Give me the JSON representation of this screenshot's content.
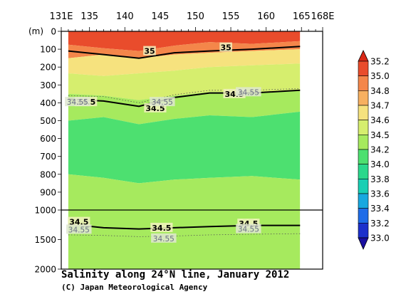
{
  "chart_data": {
    "type": "heatmap",
    "title": "Salinity along 24°N line, January 2012",
    "credit": "(C) Japan Meteorological Agency",
    "x_axis": {
      "range": [
        131,
        168
      ],
      "ticks": [
        {
          "value": 131,
          "label": "131E"
        },
        {
          "value": 135,
          "label": "135"
        },
        {
          "value": 140,
          "label": "140"
        },
        {
          "value": 145,
          "label": "145"
        },
        {
          "value": 150,
          "label": "150"
        },
        {
          "value": 155,
          "label": "155"
        },
        {
          "value": 160,
          "label": "160"
        },
        {
          "value": 165,
          "label": "165"
        },
        {
          "value": 168,
          "label": "168E"
        }
      ]
    },
    "y_axis": {
      "unit_label": "(m)",
      "ticks_upper": [
        0,
        100,
        200,
        300,
        400,
        500,
        600,
        700,
        800,
        900,
        1000
      ],
      "ticks_lower": [
        1500,
        2000
      ],
      "upper_range": [
        0,
        1000
      ],
      "lower_range": [
        1000,
        2000
      ]
    },
    "data_extent_lon": [
      132,
      164.8
    ],
    "colorbar": {
      "levels": [
        "33.0",
        "33.2",
        "33.4",
        "33.6",
        "33.8",
        "34.0",
        "34.2",
        "34.5",
        "34.6",
        "34.7",
        "34.8",
        "35.0",
        "35.2"
      ],
      "colors": [
        "#1a0fa0",
        "#1c30cc",
        "#1e6ce8",
        "#17a8e0",
        "#18cfb4",
        "#2ad88c",
        "#4de070",
        "#a6ea5e",
        "#d6ee6e",
        "#f6e27e",
        "#f7b060",
        "#f4864a",
        "#e94c2c",
        "#d92816"
      ]
    },
    "bands": [
      {
        "value": "35.0+",
        "color": "#e94c2c",
        "depth_top_m": 0,
        "depth_bottom_m": [
          75,
          95,
          110,
          80,
          60,
          70,
          55
        ]
      },
      {
        "value": "34.8-35.0",
        "color": "#f4864a",
        "depth_bottom_m": [
          150,
          130,
          150,
          130,
          120,
          110,
          100
        ]
      },
      {
        "value": "34.7-34.8",
        "color": "#f6e27e",
        "depth_bottom_m": [
          235,
          250,
          235,
          220,
          200,
          190,
          180
        ]
      },
      {
        "value": "34.6-34.7",
        "color": "#d6ee6e",
        "depth_bottom_m": [
          350,
          360,
          385,
          360,
          340,
          340,
          330
        ]
      },
      {
        "value": "34.5-34.6",
        "color": "#a6ea5e",
        "depth_bottom_m": [
          500,
          480,
          520,
          490,
          470,
          480,
          450
        ]
      },
      {
        "value": "34.2-34.5",
        "color": "#4de070",
        "depth_bottom_m": [
          800,
          820,
          850,
          830,
          820,
          810,
          830
        ]
      },
      {
        "value": "34.5-34.6 lower",
        "color": "#a6ea5e",
        "depth_bottom_m": [
          2000,
          2000,
          2000,
          2000,
          2000,
          2000,
          2000
        ]
      }
    ],
    "band_lons": [
      132,
      137,
      142,
      147,
      152,
      158,
      164.8
    ],
    "contours": [
      {
        "value": 35,
        "style": "bold",
        "depths_m": [
          110,
          130,
          150,
          120,
          110,
          100,
          85
        ]
      },
      {
        "value": 34.5,
        "style": "bold",
        "depths_m": [
          380,
          390,
          420,
          370,
          345,
          345,
          330
        ]
      },
      {
        "value": 34.55,
        "style": "dotted",
        "depths_m": [
          360,
          365,
          400,
          355,
          330,
          330,
          320
        ]
      },
      {
        "value": 34.5,
        "style": "bold",
        "depths_m": [
          1240,
          1300,
          1320,
          1300,
          1280,
          1260,
          1260
        ]
      },
      {
        "value": 34.55,
        "style": "dotted",
        "depths_m": [
          1420,
          1430,
          1450,
          1440,
          1420,
          1410,
          1400
        ]
      }
    ],
    "contour_labels": [
      {
        "text": "35",
        "lon": 143.5,
        "depth_m": 110,
        "style": "bold"
      },
      {
        "text": "35",
        "lon": 154.3,
        "depth_m": 90,
        "style": "bold"
      },
      {
        "text": "34.5",
        "lon": 134.5,
        "depth_m": 395,
        "style": "bold"
      },
      {
        "text": "34.5",
        "lon": 144.3,
        "depth_m": 430,
        "style": "bold"
      },
      {
        "text": "34.5",
        "lon": 155.5,
        "depth_m": 350,
        "style": "bold"
      },
      {
        "text": "34.55",
        "lon": 133.3,
        "depth_m": 395,
        "style": "faint"
      },
      {
        "text": "34.55",
        "lon": 145.3,
        "depth_m": 395,
        "style": "faint"
      },
      {
        "text": "34.55",
        "lon": 157.5,
        "depth_m": 340,
        "style": "faint"
      },
      {
        "text": "34.5",
        "lon": 133.5,
        "depth_m": 1200,
        "style": "bold"
      },
      {
        "text": "34.5",
        "lon": 145.2,
        "depth_m": 1300,
        "style": "bold"
      },
      {
        "text": "34.5",
        "lon": 157.5,
        "depth_m": 1230,
        "style": "bold"
      },
      {
        "text": "34.55",
        "lon": 133.5,
        "depth_m": 1330,
        "style": "faint"
      },
      {
        "text": "34.55",
        "lon": 145.5,
        "depth_m": 1480,
        "style": "faint"
      },
      {
        "text": "34.55",
        "lon": 157.5,
        "depth_m": 1320,
        "style": "faint"
      }
    ]
  }
}
